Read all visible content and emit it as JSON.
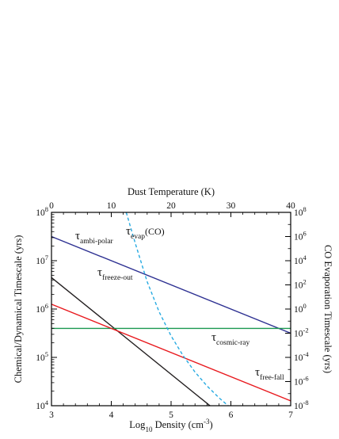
{
  "chart_data": {
    "type": "line",
    "title": "",
    "x": {
      "label": "Log10 Density (cm-3)",
      "label_main": "Log",
      "label_sub": "10",
      "label_mid": " Density (cm",
      "label_sup": "-3",
      "label_end": ")",
      "range": [
        3,
        7
      ],
      "ticks": [
        "3",
        "4",
        "5",
        "6",
        "7"
      ]
    },
    "x_top": {
      "label": "Dust Temperature (K)",
      "range": [
        0,
        40
      ],
      "ticks": [
        "0",
        "10",
        "20",
        "30",
        "40"
      ]
    },
    "y_left": {
      "label": "Chemical/Dynamical Timescale (yrs)",
      "scale": "log",
      "range_exp": [
        4,
        8
      ],
      "tick_base": "10",
      "tick_exps": [
        "4",
        "5",
        "6",
        "7",
        "8"
      ]
    },
    "y_right": {
      "label": "CO Evaporation Timescale (yrs)",
      "scale": "log",
      "range_exp": [
        -8,
        8
      ],
      "tick_base": "10",
      "tick_exps": [
        "-8",
        "-6",
        "-4",
        "-2",
        "0",
        "2",
        "4",
        "6",
        "8"
      ]
    },
    "series": [
      {
        "name": "τ ambi-polar",
        "name_main": "τ",
        "name_sub": "ambi-polar",
        "color": "#2e3192",
        "style": "solid",
        "axis": "left",
        "x_axis": "bottom",
        "x": [
          3,
          7
        ],
        "y_exp": [
          7.5,
          5.5
        ]
      },
      {
        "name": "τ freeze-out",
        "name_main": "τ",
        "name_sub": "freeze-out",
        "color": "#231f20",
        "style": "solid",
        "axis": "left",
        "x_axis": "bottom",
        "x": [
          3,
          5.65
        ],
        "y_exp": [
          6.65,
          4.0
        ]
      },
      {
        "name": "τ cosmic-ray",
        "name_main": "τ",
        "name_sub": "cosmic-ray",
        "color": "#1a9850",
        "style": "solid",
        "axis": "left",
        "x_axis": "bottom",
        "x": [
          3,
          7
        ],
        "y_exp": [
          5.6,
          5.6
        ]
      },
      {
        "name": "τ free-fall",
        "name_main": "τ",
        "name_sub": "free-fall",
        "color": "#e8191e",
        "style": "solid",
        "axis": "left",
        "x_axis": "bottom",
        "x": [
          3,
          7
        ],
        "y_exp": [
          6.1,
          4.1
        ]
      },
      {
        "name": "τ evap(CO)",
        "name_main": "τ",
        "name_sub": "evap",
        "name_end": "(CO)",
        "color": "#27aae1",
        "style": "dashed",
        "axis": "right",
        "x_axis": "top",
        "x": [
          12.5,
          14,
          16,
          18,
          20,
          22,
          24,
          26,
          28,
          30,
          31.0
        ],
        "y_exp": [
          8.0,
          5.46,
          2.26,
          -0.23,
          -2.22,
          -3.85,
          -5.21,
          -6.36,
          -7.34,
          -8.2,
          -8.58
        ]
      }
    ]
  }
}
